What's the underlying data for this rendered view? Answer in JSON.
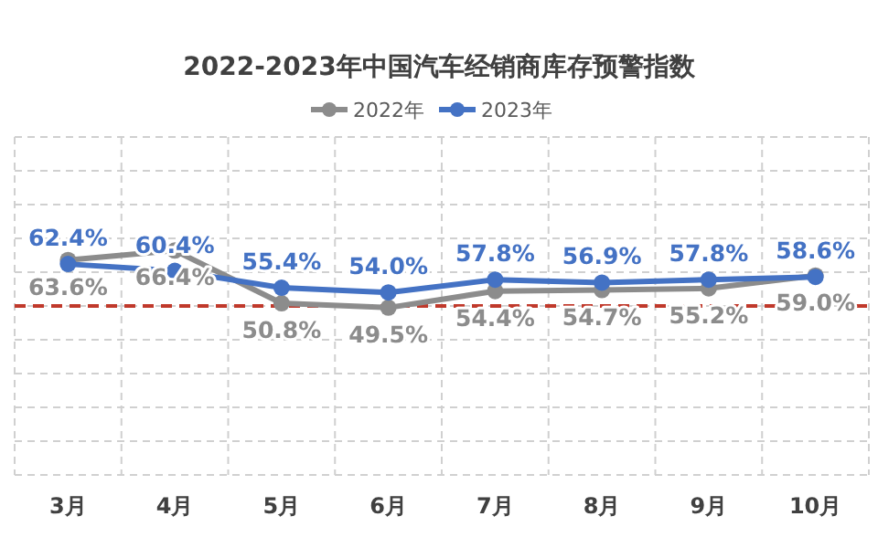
{
  "chart_data": {
    "type": "line",
    "title": "2022-2023年中国汽车经销商库存预警指数",
    "categories": [
      "3月",
      "4月",
      "5月",
      "6月",
      "7月",
      "8月",
      "9月",
      "10月"
    ],
    "series": [
      {
        "name": "2022年",
        "color": "#8c8c8c",
        "values": [
          63.6,
          66.4,
          50.8,
          49.5,
          54.4,
          54.7,
          55.2,
          59.0
        ],
        "value_labels": [
          "63.6%",
          "66.4%",
          "50.8%",
          "49.5%",
          "54.4%",
          "54.7%",
          "55.2%",
          "59.0%"
        ]
      },
      {
        "name": "2023年",
        "color": "#4472c4",
        "values": [
          62.4,
          60.4,
          55.4,
          54.0,
          57.8,
          56.9,
          57.8,
          58.6
        ],
        "value_labels": [
          "62.4%",
          "60.4%",
          "55.4%",
          "54.0%",
          "57.8%",
          "56.9%",
          "57.8%",
          "58.6%"
        ]
      }
    ],
    "ylim": [
      0,
      100
    ],
    "yticks": [
      {
        "value": 0,
        "label": null
      },
      {
        "value": 10,
        "label": null
      },
      {
        "value": 20,
        "label": null
      },
      {
        "value": 30,
        "label": null
      },
      {
        "value": 40,
        "label": null
      },
      {
        "value": 50,
        "label": null
      },
      {
        "value": 60,
        "label": null
      },
      {
        "value": 70,
        "label": null
      },
      {
        "value": 80,
        "label": null
      },
      {
        "value": 90,
        "label": null
      },
      {
        "value": 100,
        "label": null
      }
    ],
    "tick_labels": "x",
    "grid": true,
    "legend": "top",
    "marker": "circle",
    "line_style": "solid",
    "ref_lines": [
      {
        "axis": "y",
        "value": 50,
        "color": "#c0392b",
        "line_style": "dashed"
      }
    ]
  }
}
